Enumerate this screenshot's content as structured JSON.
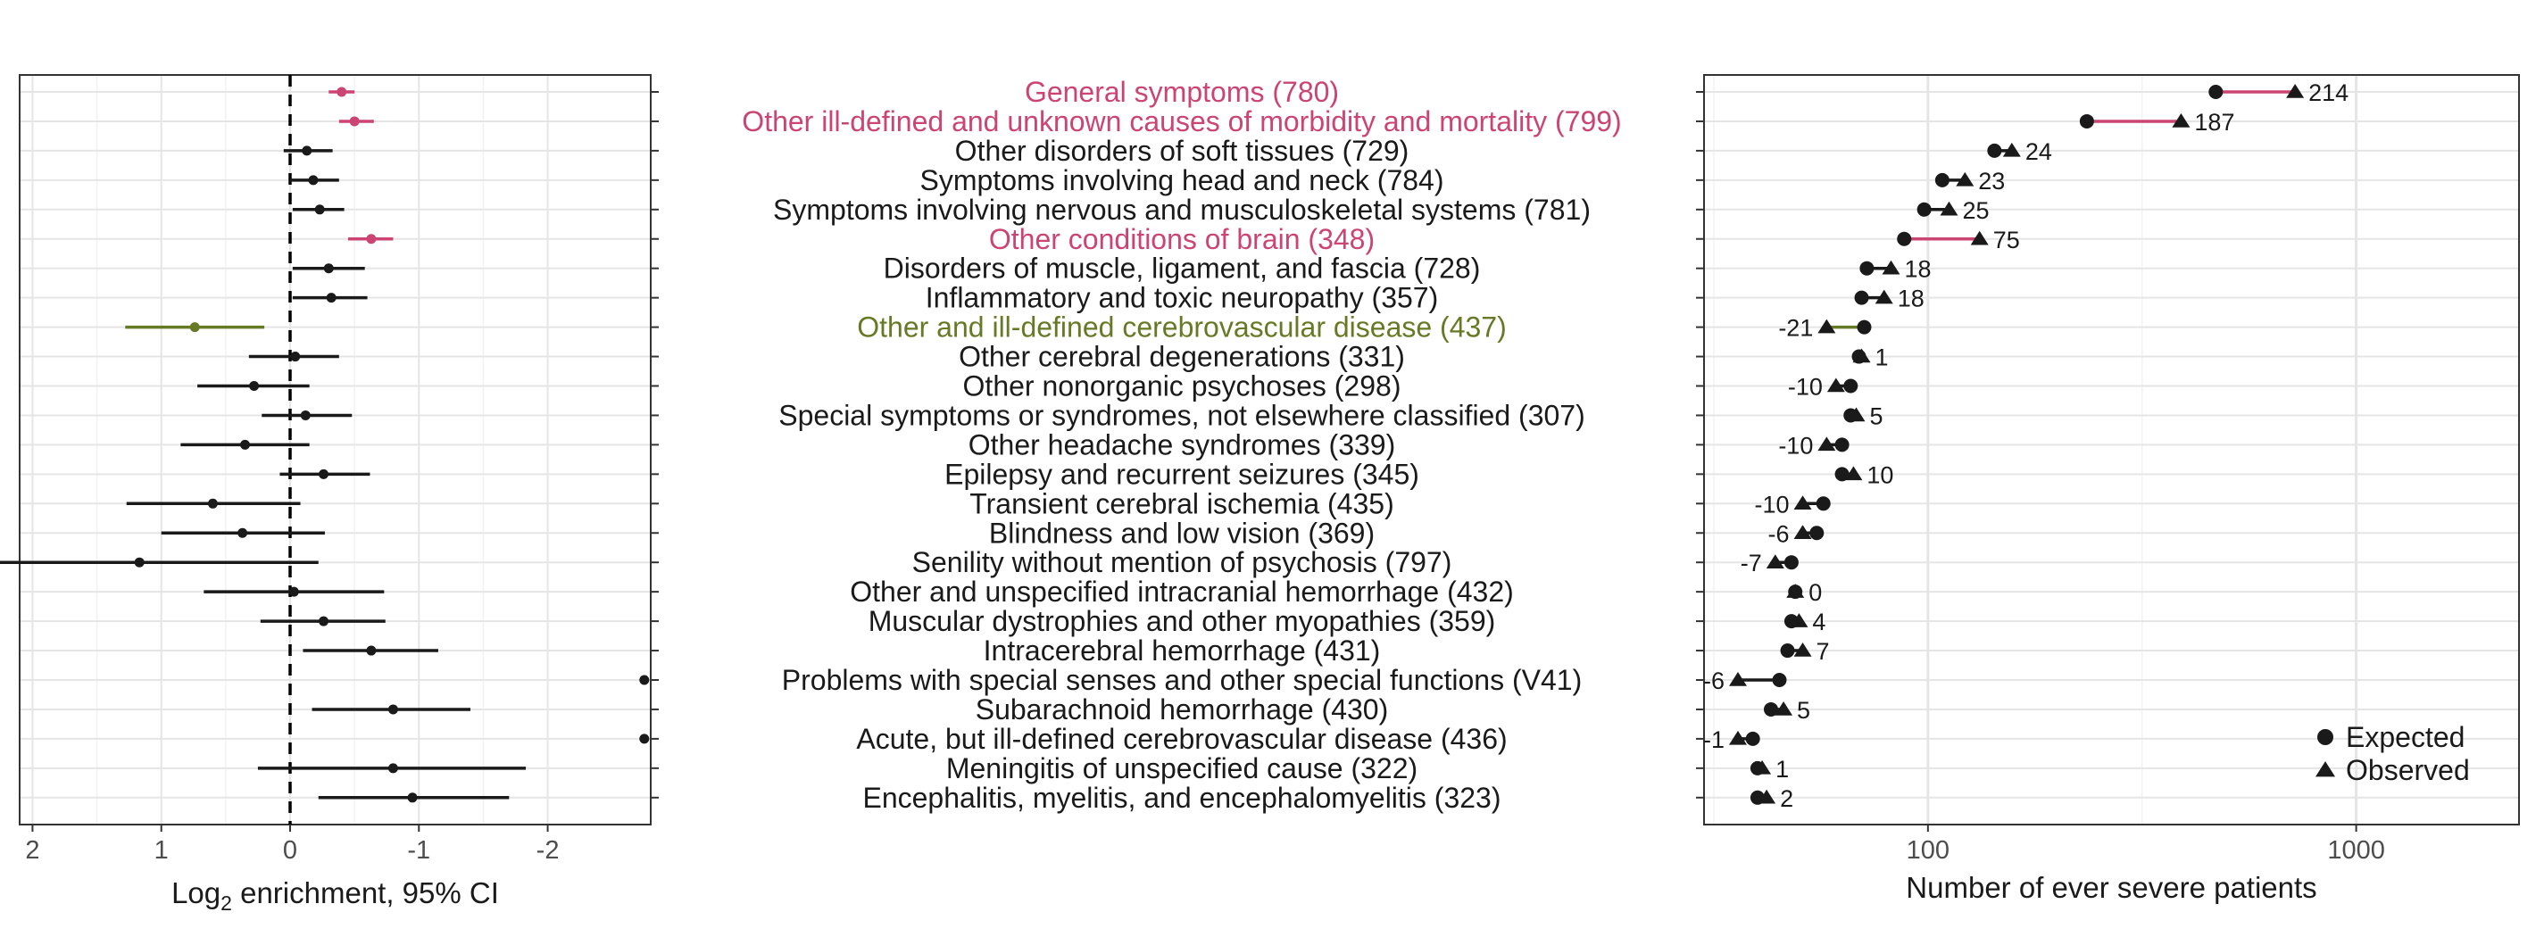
{
  "colors": {
    "black": "#1a1a1a",
    "pink": "#cc4471",
    "olive": "#667a25",
    "grid": "#e5e5e5",
    "panel_border": "#333333",
    "axis_text": "#4d4d4d"
  },
  "chart_data": [
    {
      "type": "forest",
      "xlabel_prefix": "Log",
      "xlabel_sub": "2",
      "xlabel_suffix": " enrichment, 95% CI",
      "x_reversed": true,
      "xlim": [
        2.1,
        -2.8
      ],
      "x_ticks": [
        2,
        1,
        0,
        -1,
        -2
      ],
      "x_tick_labels": [
        "2",
        "1",
        "0",
        "-1",
        "-2"
      ],
      "reference_line": 0,
      "categories": [
        {
          "label": "General symptoms (780)",
          "color": "pink",
          "est": -0.4,
          "lo": -0.5,
          "hi": -0.3
        },
        {
          "label": "Other ill-defined and unknown causes of morbidity and mortality (799)",
          "color": "pink",
          "est": -0.5,
          "lo": -0.65,
          "hi": -0.38
        },
        {
          "label": "Other disorders of soft tissues (729)",
          "color": "black",
          "est": -0.13,
          "lo": -0.33,
          "hi": 0.05
        },
        {
          "label": "Symptoms involving head and neck (784)",
          "color": "black",
          "est": -0.18,
          "lo": -0.38,
          "hi": 0.0
        },
        {
          "label": "Symptoms involving nervous and musculoskeletal systems (781)",
          "color": "black",
          "est": -0.23,
          "lo": -0.42,
          "hi": -0.02
        },
        {
          "label": "Other conditions of brain (348)",
          "color": "pink",
          "est": -0.63,
          "lo": -0.8,
          "hi": -0.45
        },
        {
          "label": "Disorders of muscle, ligament, and fascia (728)",
          "color": "black",
          "est": -0.3,
          "lo": -0.58,
          "hi": -0.02
        },
        {
          "label": "Inflammatory and toxic neuropathy (357)",
          "color": "black",
          "est": -0.32,
          "lo": -0.6,
          "hi": -0.02
        },
        {
          "label": "Other and ill-defined cerebrovascular disease (437)",
          "color": "olive",
          "est": 0.74,
          "lo": 0.2,
          "hi": 1.28
        },
        {
          "label": "Other cerebral degenerations (331)",
          "color": "black",
          "est": -0.04,
          "lo": -0.38,
          "hi": 0.32
        },
        {
          "label": "Other nonorganic psychoses (298)",
          "color": "black",
          "est": 0.28,
          "lo": -0.15,
          "hi": 0.72
        },
        {
          "label": "Special symptoms or syndromes, not elsewhere classified (307)",
          "color": "black",
          "est": -0.12,
          "lo": -0.48,
          "hi": 0.22
        },
        {
          "label": "Other headache syndromes (339)",
          "color": "black",
          "est": 0.35,
          "lo": -0.15,
          "hi": 0.85
        },
        {
          "label": "Epilepsy and recurrent seizures (345)",
          "color": "black",
          "est": -0.26,
          "lo": -0.62,
          "hi": 0.08
        },
        {
          "label": "Transient cerebral ischemia (435)",
          "color": "black",
          "est": 0.6,
          "lo": -0.08,
          "hi": 1.27
        },
        {
          "label": "Blindness and low vision (369)",
          "color": "black",
          "est": 0.37,
          "lo": -0.27,
          "hi": 1.0
        },
        {
          "label": "Senility without mention of psychosis (797)",
          "color": "black",
          "est": 1.17,
          "lo": -0.22,
          "hi": 2.6
        },
        {
          "label": "Other and unspecified intracranial hemorrhage (432)",
          "color": "black",
          "est": -0.03,
          "lo": -0.73,
          "hi": 0.67
        },
        {
          "label": "Muscular dystrophies and other myopathies (359)",
          "color": "black",
          "est": -0.26,
          "lo": -0.74,
          "hi": 0.23
        },
        {
          "label": "Intracerebral hemorrhage (431)",
          "color": "black",
          "est": -0.63,
          "lo": -1.15,
          "hi": -0.1
        },
        {
          "label": "Problems with special senses and other special functions (V41)",
          "color": "black",
          "est": -2.75,
          "lo": null,
          "hi": null
        },
        {
          "label": "Subarachnoid hemorrhage (430)",
          "color": "black",
          "est": -0.8,
          "lo": -1.4,
          "hi": -0.17
        },
        {
          "label": "Acute, but ill-defined cerebrovascular disease (436)",
          "color": "black",
          "est": -2.75,
          "lo": null,
          "hi": null
        },
        {
          "label": "Meningitis of unspecified cause (322)",
          "color": "black",
          "est": -0.8,
          "lo": -1.83,
          "hi": 0.25
        },
        {
          "label": "Encephalitis, myelitis, and encephalomyelitis (323)",
          "color": "black",
          "est": -0.95,
          "lo": -1.7,
          "hi": -0.22
        }
      ]
    },
    {
      "type": "dumbbell",
      "xlabel": "Number of ever severe patients",
      "x_scale": "log",
      "xlim": [
        30,
        2400
      ],
      "x_ticks": [
        100,
        1000
      ],
      "x_tick_labels": [
        "100",
        "1000"
      ],
      "legend": {
        "position": "bottom-right",
        "items": [
          {
            "label": "Expected",
            "shape": "circle"
          },
          {
            "label": "Observed",
            "shape": "triangle"
          }
        ]
      },
      "rows": [
        {
          "label": "General symptoms (780)",
          "expected": 470,
          "observed": 720,
          "diff_label": "214",
          "color": "pink"
        },
        {
          "label": "Other ill-defined and unknown causes of morbidity and mortality (799)",
          "expected": 235,
          "observed": 390,
          "diff_label": "187",
          "color": "pink"
        },
        {
          "label": "Other disorders of soft tissues (729)",
          "expected": 143,
          "observed": 157,
          "diff_label": "24",
          "color": "black"
        },
        {
          "label": "Symptoms involving head and neck (784)",
          "expected": 108,
          "observed": 122,
          "diff_label": "23",
          "color": "black"
        },
        {
          "label": "Symptoms involving nervous and musculoskeletal systems (781)",
          "expected": 98,
          "observed": 112,
          "diff_label": "25",
          "color": "black"
        },
        {
          "label": "Other conditions of brain (348)",
          "expected": 88,
          "observed": 132,
          "diff_label": "75",
          "color": "pink"
        },
        {
          "label": "Disorders of muscle, ligament, and fascia (728)",
          "expected": 72,
          "observed": 82,
          "diff_label": "18",
          "color": "black"
        },
        {
          "label": "Inflammatory and toxic neuropathy (357)",
          "expected": 70,
          "observed": 79,
          "diff_label": "18",
          "color": "black"
        },
        {
          "label": "Other and ill-defined cerebrovascular disease (437)",
          "expected": 71,
          "observed": 58,
          "diff_label": "-21",
          "color": "olive"
        },
        {
          "label": "Other cerebral degenerations (331)",
          "expected": 69,
          "observed": 70,
          "diff_label": "1",
          "color": "black"
        },
        {
          "label": "Other nonorganic psychoses (298)",
          "expected": 66,
          "observed": 61,
          "diff_label": "-10",
          "color": "black"
        },
        {
          "label": "Special symptoms or syndromes, not elsewhere classified (307)",
          "expected": 66,
          "observed": 68,
          "diff_label": "5",
          "color": "black"
        },
        {
          "label": "Other headache syndromes (339)",
          "expected": 63,
          "observed": 58,
          "diff_label": "-10",
          "color": "black"
        },
        {
          "label": "Epilepsy and recurrent seizures (345)",
          "expected": 63,
          "observed": 67,
          "diff_label": "10",
          "color": "black"
        },
        {
          "label": "Transient cerebral ischemia (435)",
          "expected": 57,
          "observed": 51,
          "diff_label": "-10",
          "color": "black"
        },
        {
          "label": "Blindness and low vision (369)",
          "expected": 55,
          "observed": 51,
          "diff_label": "-6",
          "color": "black"
        },
        {
          "label": "Senility without mention of psychosis (797)",
          "expected": 48,
          "observed": 44,
          "diff_label": "-7",
          "color": "black"
        },
        {
          "label": "Other and unspecified intracranial hemorrhage (432)",
          "expected": 49,
          "observed": 49,
          "diff_label": "0",
          "color": "black"
        },
        {
          "label": "Muscular dystrophies and other myopathies (359)",
          "expected": 48,
          "observed": 50,
          "diff_label": "4",
          "color": "black"
        },
        {
          "label": "Intracerebral hemorrhage (431)",
          "expected": 47,
          "observed": 51,
          "diff_label": "7",
          "color": "black"
        },
        {
          "label": "Problems with special senses and other special functions (V41)",
          "expected": 45,
          "observed": 36,
          "diff_label": "-6",
          "color": "black"
        },
        {
          "label": "Subarachnoid hemorrhage (430)",
          "expected": 43,
          "observed": 46,
          "diff_label": "5",
          "color": "black"
        },
        {
          "label": "Acute, but ill-defined cerebrovascular disease (436)",
          "expected": 39,
          "observed": 36,
          "diff_label": "-1",
          "color": "black"
        },
        {
          "label": "Meningitis of unspecified cause (322)",
          "expected": 40,
          "observed": 41,
          "diff_label": "1",
          "color": "black"
        },
        {
          "label": "Encephalitis, myelitis, and encephalomyelitis (323)",
          "expected": 40,
          "observed": 42,
          "diff_label": "2",
          "color": "black"
        }
      ]
    }
  ]
}
